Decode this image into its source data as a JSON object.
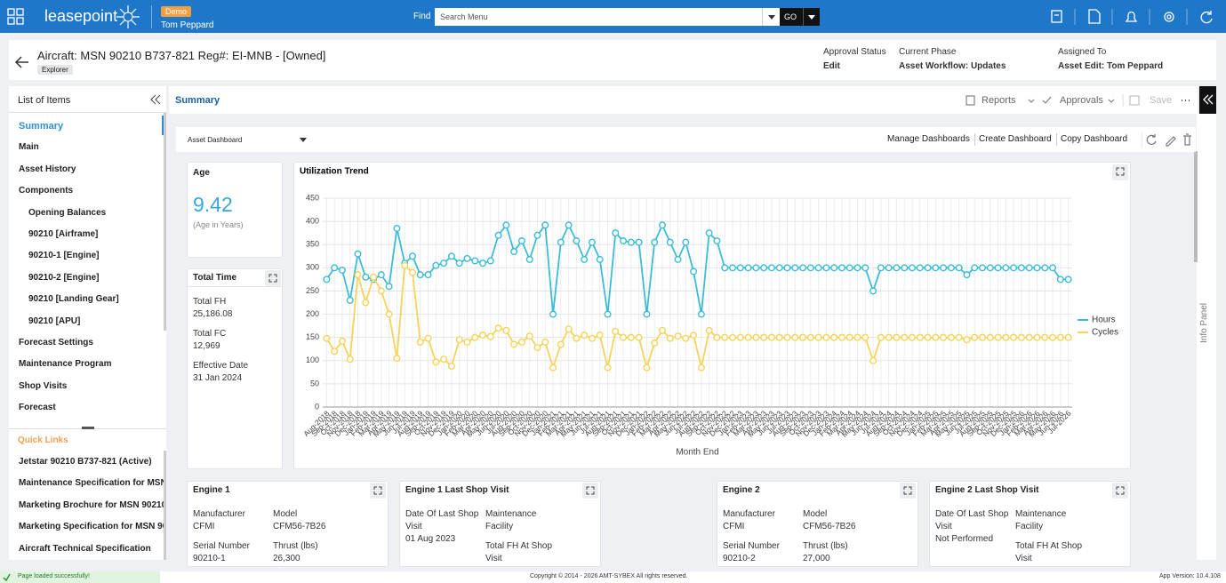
{
  "header": {
    "app": "leasepoint",
    "badge": "Demo",
    "user": "Tom Peppard",
    "find_label": "Find",
    "search_placeholder": "Search Menu",
    "go": "GO"
  },
  "record": {
    "title": "Aircraft: MSN 90210 B737-821 Reg#: EI-MNB - [Owned]",
    "tag": "Explorer",
    "status": [
      {
        "label": "Approval Status",
        "value": "Edit"
      },
      {
        "label": "Current Phase",
        "value": "Asset Workflow: Updates"
      },
      {
        "label": "Assigned To",
        "value": "Asset Edit: Tom Peppard"
      }
    ]
  },
  "sidebar": {
    "title": "List of Items",
    "items": [
      {
        "label": "Summary"
      },
      {
        "label": "Main"
      },
      {
        "label": "Asset History"
      },
      {
        "label": "Components",
        "children": [
          "Opening Balances",
          "90210 [Airframe]",
          "90210-1 [Engine]",
          "90210-2 [Engine]",
          "90210 [Landing Gear]",
          "90210 [APU]"
        ]
      },
      {
        "label": "Forecast Settings"
      },
      {
        "label": "Maintenance Program"
      },
      {
        "label": "Shop Visits"
      },
      {
        "label": "Forecast"
      }
    ],
    "quick_links_title": "Quick Links",
    "quick_links": [
      "Jetstar 90210 B737-821 (Active)",
      "Maintenance Specification for MSN",
      "Marketing Brochure for MSN 90210",
      "Marketing Specification for MSN 90",
      "Aircraft Technical Specification"
    ]
  },
  "main": {
    "tab": "Summary",
    "toolbar": [
      "Reports",
      "Approvals",
      "Save"
    ],
    "dashboard_select": "Asset Dashboard",
    "dashboard_actions": [
      "Manage Dashboards",
      "Create Dashboard",
      "Copy Dashboard"
    ],
    "info_panel": "Info Panel"
  },
  "age": {
    "title": "Age",
    "value": 9.42,
    "note": "(Age in Years)"
  },
  "total_time": {
    "title": "Total Time",
    "fields": [
      {
        "label": "Total FH",
        "value": "25,186.08"
      },
      {
        "label": "Total FC",
        "value": "12,969"
      },
      {
        "label": "Effective Date",
        "value": "31 Jan 2024"
      }
    ]
  },
  "engine_cards": [
    {
      "title": "Engine 1",
      "fields": [
        {
          "label": "Manufacturer",
          "value": "CFMI"
        },
        {
          "label": "Model",
          "value": "CFM56-7B26"
        },
        {
          "label": "Serial Number",
          "value": "90210-1"
        },
        {
          "label": "Thrust (lbs)",
          "value": "26,300"
        }
      ]
    },
    {
      "title": "Engine 1 Last Shop Visit",
      "fields": [
        {
          "label": "Date Of Last Shop Visit",
          "value": "01 Aug 2023"
        },
        {
          "label": "Maintenance Facility"
        },
        {
          "label": "Total FH At Shop Visit"
        }
      ]
    },
    {
      "title": "Engine 2",
      "fields": [
        {
          "label": "Manufacturer",
          "value": "CFMI"
        },
        {
          "label": "Model",
          "value": "CFM56-7B26"
        },
        {
          "label": "Serial Number",
          "value": "90210-2"
        },
        {
          "label": "Thrust (lbs)",
          "value": "27,000"
        }
      ]
    },
    {
      "title": "Engine 2 Last Shop Visit",
      "fields": [
        {
          "label": "Date Of Last Shop Visit",
          "value": "Not Performed"
        },
        {
          "label": "Maintenance Facility"
        },
        {
          "label": "Total FH At Shop Visit"
        }
      ]
    }
  ],
  "footer": {
    "status": "Page loaded successfully!",
    "copyright": "Copyright © 2014 - 2026 AMT-SYBEX All rights reserved.",
    "version": "App Version: 10.4.108"
  },
  "chart_data": {
    "type": "line",
    "title": "Utilization Trend",
    "x_label": "Month End",
    "grid": true,
    "legend": "right",
    "categories": [
      "Aug-2018",
      "Sep-2018",
      "Oct-2018",
      "Nov-2018",
      "Dec-2018",
      "Jan-2019",
      "Feb-2019",
      "Mar-2019",
      "Apr-2019",
      "May-2019",
      "Jun-2019",
      "Jul-2019",
      "Aug-2019",
      "Sep-2019",
      "Oct-2019",
      "Nov-2019",
      "Dec-2019",
      "Jan-2020",
      "Feb-2020",
      "Mar-2020",
      "Apr-2020",
      "May-2020",
      "Jun-2020",
      "Jul-2020",
      "Aug-2020",
      "Sep-2020",
      "Oct-2020",
      "Nov-2020",
      "Dec-2020",
      "Jan-2021",
      "Feb-2021",
      "Mar-2021",
      "Apr-2021",
      "May-2021",
      "Jun-2021",
      "Jul-2021",
      "Aug-2021",
      "Sep-2021",
      "Oct-2021",
      "Nov-2021",
      "Dec-2021",
      "Jan-2022",
      "Feb-2022",
      "Mar-2022",
      "Apr-2022",
      "May-2022",
      "Jun-2022",
      "Jul-2022",
      "Aug-2022",
      "Sep-2022",
      "Oct-2022",
      "Nov-2022",
      "Dec-2022",
      "Jan-2023",
      "Feb-2023",
      "Mar-2023",
      "Apr-2023",
      "May-2023",
      "Jun-2023",
      "Jul-2023",
      "Aug-2023",
      "Sep-2023",
      "Oct-2023",
      "Nov-2023",
      "Dec-2023",
      "Jan-2024",
      "Feb-2024",
      "Mar-2024",
      "Apr-2024",
      "May-2024",
      "Jun-2024",
      "Jul-2024",
      "Aug-2024",
      "Sep-2024",
      "Oct-2024",
      "Nov-2024",
      "Dec-2024",
      "Jan-2025",
      "Feb-2025",
      "Mar-2025",
      "Apr-2025",
      "May-2025",
      "Jun-2025",
      "Jul-2025",
      "Aug-2025",
      "Sep-2025",
      "Oct-2025",
      "Nov-2025",
      "Dec-2025",
      "Jan-2026",
      "Feb-2026",
      "Mar-2026",
      "Apr-2026",
      "May-2026",
      "Jun-2026",
      "Jul-2026"
    ],
    "series": [
      {
        "name": "Hours",
        "color": "#3dbcd6",
        "values": [
          275,
          300,
          295,
          230,
          330,
          280,
          275,
          285,
          260,
          385,
          310,
          325,
          285,
          285,
          305,
          310,
          325,
          310,
          320,
          315,
          310,
          315,
          370,
          392,
          335,
          358,
          318,
          370,
          392,
          200,
          355,
          392,
          358,
          318,
          355,
          318,
          200,
          375,
          358,
          355,
          355,
          200,
          355,
          392,
          355,
          318,
          355,
          292,
          200,
          375,
          358,
          300,
          300,
          300,
          300,
          300,
          300,
          300,
          300,
          300,
          300,
          300,
          300,
          300,
          300,
          300,
          300,
          300,
          300,
          300,
          250,
          300,
          300,
          300,
          300,
          300,
          300,
          300,
          300,
          300,
          300,
          300,
          285,
          300,
          300,
          300,
          300,
          300,
          300,
          300,
          300,
          300,
          300,
          300,
          275,
          275
        ]
      },
      {
        "name": "Cycles",
        "color": "#f6d35a",
        "values": [
          148,
          120,
          142,
          103,
          285,
          225,
          280,
          250,
          200,
          105,
          305,
          290,
          140,
          148,
          97,
          103,
          88,
          145,
          140,
          150,
          155,
          152,
          170,
          165,
          135,
          140,
          153,
          128,
          140,
          85,
          135,
          168,
          148,
          155,
          148,
          155,
          85,
          163,
          150,
          150,
          150,
          85,
          138,
          165,
          148,
          153,
          148,
          155,
          85,
          165,
          150,
          150,
          150,
          150,
          150,
          150,
          150,
          150,
          150,
          150,
          150,
          150,
          150,
          150,
          150,
          150,
          150,
          150,
          150,
          150,
          100,
          150,
          150,
          150,
          150,
          150,
          150,
          150,
          150,
          150,
          150,
          150,
          145,
          150,
          150,
          150,
          150,
          150,
          150,
          150,
          150,
          150,
          150,
          150,
          150,
          150
        ]
      }
    ],
    "ylim": [
      0,
      450
    ],
    "yticks": [
      0,
      50,
      100,
      150,
      200,
      250,
      300,
      350,
      400,
      450
    ]
  }
}
